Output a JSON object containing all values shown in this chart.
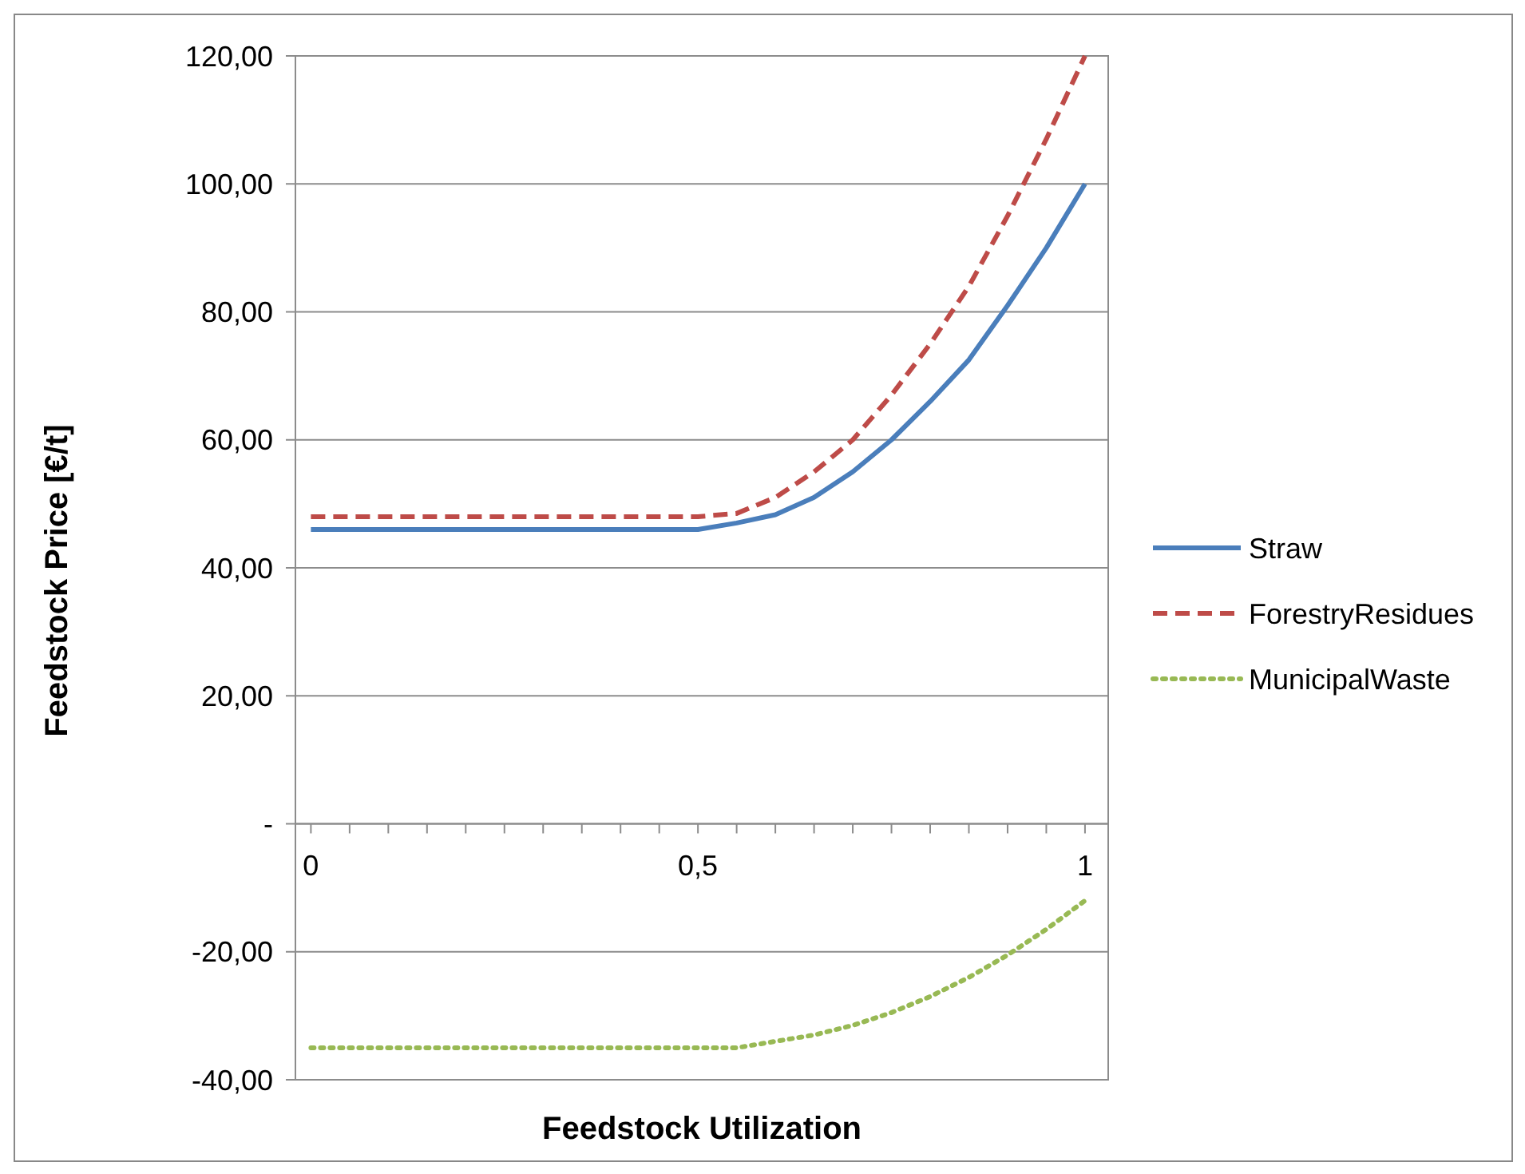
{
  "chart_data": {
    "type": "line",
    "xlabel": "Feedstock Utilization",
    "ylabel": "Feedstock Price [€/t]",
    "x": [
      0,
      0.05,
      0.1,
      0.15,
      0.2,
      0.25,
      0.3,
      0.35,
      0.4,
      0.45,
      0.5,
      0.55,
      0.6,
      0.65,
      0.7,
      0.75,
      0.8,
      0.85,
      0.9,
      0.95,
      1
    ],
    "series": [
      {
        "name": "Straw",
        "color": "#4a7ebb",
        "line_style": "solid",
        "values": [
          46,
          46,
          46,
          46,
          46,
          46,
          46,
          46,
          46,
          46,
          46,
          47,
          48.3,
          51,
          55,
          60,
          66,
          72.5,
          81,
          90,
          100
        ]
      },
      {
        "name": "ForestryResidues",
        "color": "#be4b48",
        "line_style": "dashed",
        "values": [
          48,
          48,
          48,
          48,
          48,
          48,
          48,
          48,
          48,
          48,
          48,
          48.5,
          51,
          55,
          60,
          67,
          75,
          84,
          95,
          107,
          120
        ]
      },
      {
        "name": "MunicipalWaste",
        "color": "#98b954",
        "line_style": "dotted",
        "values": [
          -35,
          -35,
          -35,
          -35,
          -35,
          -35,
          -35,
          -35,
          -35,
          -35,
          -35,
          -35,
          -34,
          -33,
          -31.5,
          -29.5,
          -27,
          -24,
          -20.5,
          -16.5,
          -12
        ]
      }
    ],
    "xlim": [
      -0.02,
      1.03
    ],
    "xticks": [
      0,
      {
        "value": 0.05,
        "label": null
      },
      {
        "value": 0.1,
        "label": null
      },
      {
        "value": 0.15,
        "label": null
      },
      {
        "value": 0.2,
        "label": null
      },
      {
        "value": 0.25,
        "label": null
      },
      {
        "value": 0.3,
        "label": null
      },
      {
        "value": 0.35,
        "label": null
      },
      {
        "value": 0.4,
        "label": null
      },
      {
        "value": 0.45,
        "label": null
      },
      {
        "value": 0.5,
        "label": "0,5"
      },
      {
        "value": 0.55,
        "label": null
      },
      {
        "value": 0.6,
        "label": null
      },
      {
        "value": 0.65,
        "label": null
      },
      {
        "value": 0.7,
        "label": null
      },
      {
        "value": 0.75,
        "label": null
      },
      {
        "value": 0.8,
        "label": null
      },
      {
        "value": 0.85,
        "label": null
      },
      {
        "value": 0.9,
        "label": null
      },
      {
        "value": 0.95,
        "label": null
      },
      1
    ],
    "ylim": [
      -40,
      120
    ],
    "yticks": [
      {
        "value": -40,
        "label": "-40,00"
      },
      {
        "value": -20,
        "label": "-20,00"
      },
      {
        "value": 0,
        "label": "-"
      },
      {
        "value": 20,
        "label": "20,00"
      },
      {
        "value": 40,
        "label": "40,00"
      },
      {
        "value": 60,
        "label": "60,00"
      },
      {
        "value": 80,
        "label": "80,00"
      },
      {
        "value": 100,
        "label": "100,00"
      },
      {
        "value": 120,
        "label": "120,00"
      }
    ],
    "grid": "y",
    "legend": "right",
    "marker": "none"
  }
}
